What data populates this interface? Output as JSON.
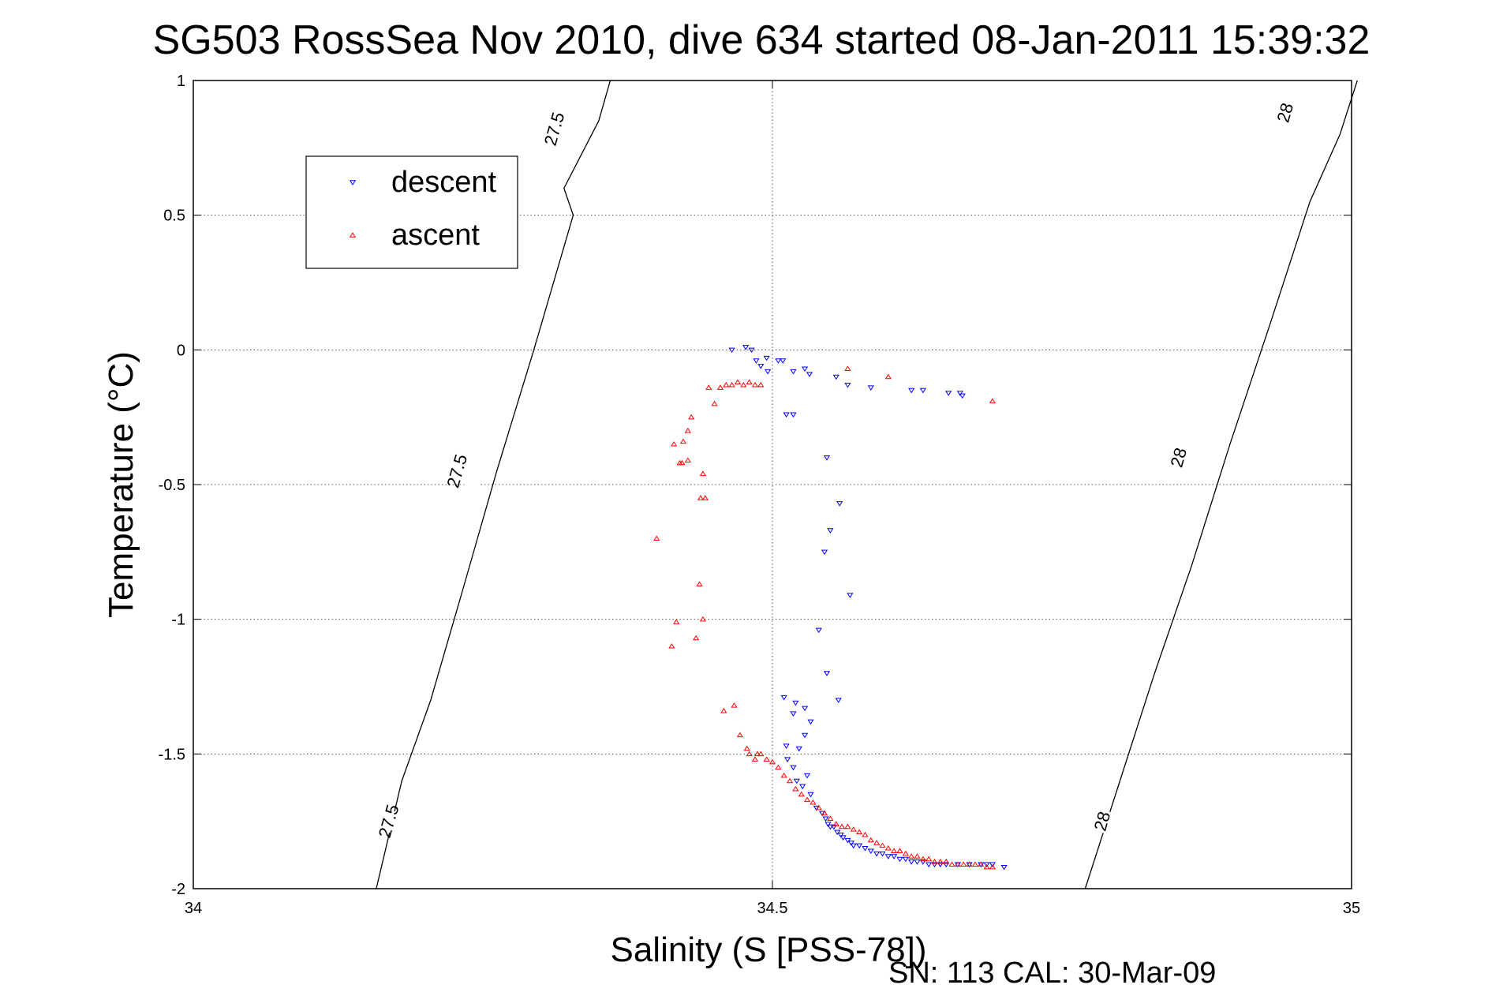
{
  "chart_data": {
    "type": "scatter",
    "title": "SG503 RossSea Nov 2010, dive 634 started 08-Jan-2011 15:39:32",
    "xlabel": "Salinity (S [PSS-78])",
    "ylabel": "Temperature (°C)",
    "xlim": [
      34,
      35
    ],
    "ylim": [
      -2,
      1
    ],
    "xticks": [
      34,
      34.5,
      35
    ],
    "xtick_labels": [
      "34",
      "34.5",
      "35"
    ],
    "yticks": [
      1,
      0.5,
      0,
      -0.5,
      -1,
      -1.5,
      -2
    ],
    "ytick_labels": [
      "1",
      "0.5",
      "0",
      "-0.5",
      "-1",
      "-1.5",
      "-2"
    ],
    "grid": true,
    "legend_position": "top-left",
    "series": [
      {
        "name": "descent",
        "marker": "triangle-down",
        "color": "#0000ff",
        "x": [
          34.465,
          34.477,
          34.482,
          34.486,
          34.49,
          34.495,
          34.505,
          34.509,
          34.528,
          34.518,
          34.532,
          34.555,
          34.565,
          34.585,
          34.62,
          34.63,
          34.652,
          34.662,
          34.664,
          34.496,
          34.512,
          34.518,
          34.547,
          34.558,
          34.55,
          34.545,
          34.567,
          34.54,
          34.547,
          34.557,
          34.51,
          34.52,
          34.518,
          34.528,
          34.533,
          34.528,
          34.523,
          34.512,
          34.513,
          34.518,
          34.521,
          34.53,
          34.526,
          34.533,
          34.538,
          34.543,
          34.546,
          34.548,
          34.55,
          34.553,
          34.556,
          34.559,
          34.561,
          34.565,
          34.568,
          34.57,
          34.575,
          34.58,
          34.585,
          34.59,
          34.595,
          34.6,
          34.605,
          34.61,
          34.615,
          34.62,
          34.625,
          34.63,
          34.635,
          34.64,
          34.645,
          34.65,
          34.66,
          34.67,
          34.68,
          34.685,
          34.69,
          34.7
        ],
        "y": [
          0.0,
          0.01,
          0.0,
          -0.04,
          -0.06,
          -0.03,
          -0.04,
          -0.04,
          -0.07,
          -0.08,
          -0.09,
          -0.1,
          -0.13,
          -0.14,
          -0.15,
          -0.15,
          -0.16,
          -0.16,
          -0.17,
          -0.08,
          -0.24,
          -0.24,
          -0.4,
          -0.57,
          -0.67,
          -0.75,
          -0.91,
          -1.04,
          -1.2,
          -1.3,
          -1.29,
          -1.31,
          -1.35,
          -1.33,
          -1.38,
          -1.43,
          -1.48,
          -1.47,
          -1.52,
          -1.55,
          -1.6,
          -1.58,
          -1.62,
          -1.65,
          -1.7,
          -1.72,
          -1.74,
          -1.76,
          -1.77,
          -1.77,
          -1.79,
          -1.8,
          -1.81,
          -1.82,
          -1.83,
          -1.84,
          -1.84,
          -1.85,
          -1.86,
          -1.87,
          -1.87,
          -1.88,
          -1.88,
          -1.89,
          -1.89,
          -1.9,
          -1.9,
          -1.9,
          -1.91,
          -1.91,
          -1.91,
          -1.91,
          -1.91,
          -1.91,
          -1.91,
          -1.91,
          -1.91,
          -1.92
        ]
      },
      {
        "name": "ascent",
        "marker": "triangle-up",
        "color": "#ff0000",
        "x": [
          34.455,
          34.46,
          34.465,
          34.47,
          34.475,
          34.48,
          34.485,
          34.49,
          34.445,
          34.45,
          34.43,
          34.427,
          34.423,
          34.415,
          34.422,
          34.438,
          34.437,
          34.44,
          34.434,
          34.417,
          34.413,
          34.4,
          34.42,
          34.427,
          34.44,
          34.442,
          34.478,
          34.48,
          34.485,
          34.487,
          34.49,
          34.495,
          34.5,
          34.505,
          34.51,
          34.515,
          34.52,
          34.525,
          34.53,
          34.535,
          34.54,
          34.545,
          34.55,
          34.555,
          34.56,
          34.565,
          34.57,
          34.575,
          34.58,
          34.585,
          34.59,
          34.595,
          34.6,
          34.605,
          34.61,
          34.615,
          34.62,
          34.625,
          34.63,
          34.635,
          34.64,
          34.645,
          34.65,
          34.655,
          34.66,
          34.665,
          34.67,
          34.675,
          34.68,
          34.685,
          34.69,
          34.565,
          34.6,
          34.69,
          34.472,
          34.467,
          34.458
        ],
        "y": [
          -0.14,
          -0.13,
          -0.13,
          -0.12,
          -0.13,
          -0.12,
          -0.13,
          -0.13,
          -0.14,
          -0.2,
          -0.25,
          -0.3,
          -0.34,
          -0.35,
          -0.42,
          -0.55,
          -0.87,
          -1.0,
          -1.07,
          -1.01,
          -1.1,
          -0.7,
          -0.42,
          -0.41,
          -0.46,
          -0.55,
          -1.48,
          -1.5,
          -1.52,
          -1.5,
          -1.5,
          -1.52,
          -1.53,
          -1.55,
          -1.58,
          -1.6,
          -1.63,
          -1.65,
          -1.67,
          -1.68,
          -1.7,
          -1.72,
          -1.74,
          -1.76,
          -1.77,
          -1.77,
          -1.78,
          -1.79,
          -1.8,
          -1.82,
          -1.83,
          -1.84,
          -1.85,
          -1.86,
          -1.86,
          -1.87,
          -1.88,
          -1.88,
          -1.89,
          -1.89,
          -1.9,
          -1.9,
          -1.9,
          -1.91,
          -1.91,
          -1.91,
          -1.91,
          -1.91,
          -1.91,
          -1.92,
          -1.92,
          -0.07,
          -0.1,
          -0.19,
          -1.43,
          -1.32,
          -1.34
        ]
      }
    ],
    "contours": [
      {
        "label": "27.5",
        "points": [
          [
            34.158,
            -2.0
          ],
          [
            34.18,
            -1.6
          ],
          [
            34.205,
            -1.3
          ],
          [
            34.232,
            -0.9
          ],
          [
            34.262,
            -0.45
          ],
          [
            34.294,
            0.0
          ],
          [
            34.328,
            0.5
          ],
          [
            34.32,
            0.6
          ],
          [
            34.35,
            0.85
          ],
          [
            34.36,
            1.0
          ]
        ]
      },
      {
        "label": "28",
        "points": [
          [
            34.77,
            -2.0
          ],
          [
            34.8,
            -1.6
          ],
          [
            34.83,
            -1.2
          ],
          [
            34.862,
            -0.8
          ],
          [
            34.895,
            -0.35
          ],
          [
            34.93,
            0.1
          ],
          [
            34.964,
            0.55
          ],
          [
            34.99,
            0.8
          ],
          [
            35.005,
            1.0
          ]
        ]
      }
    ],
    "contour_label_positions": [
      {
        "label": "27.5",
        "x": 34.169,
        "y": -1.75
      },
      {
        "label": "27.5",
        "x": 34.228,
        "y": -0.45
      },
      {
        "label": "27.5",
        "x": 34.312,
        "y": 0.82
      },
      {
        "label": "28",
        "x": 34.785,
        "y": -1.75
      },
      {
        "label": "28",
        "x": 34.851,
        "y": -0.4
      },
      {
        "label": "28",
        "x": 34.943,
        "y": 0.88
      }
    ],
    "footer_label": "SN: 113  CAL: 30-Mar-09"
  }
}
